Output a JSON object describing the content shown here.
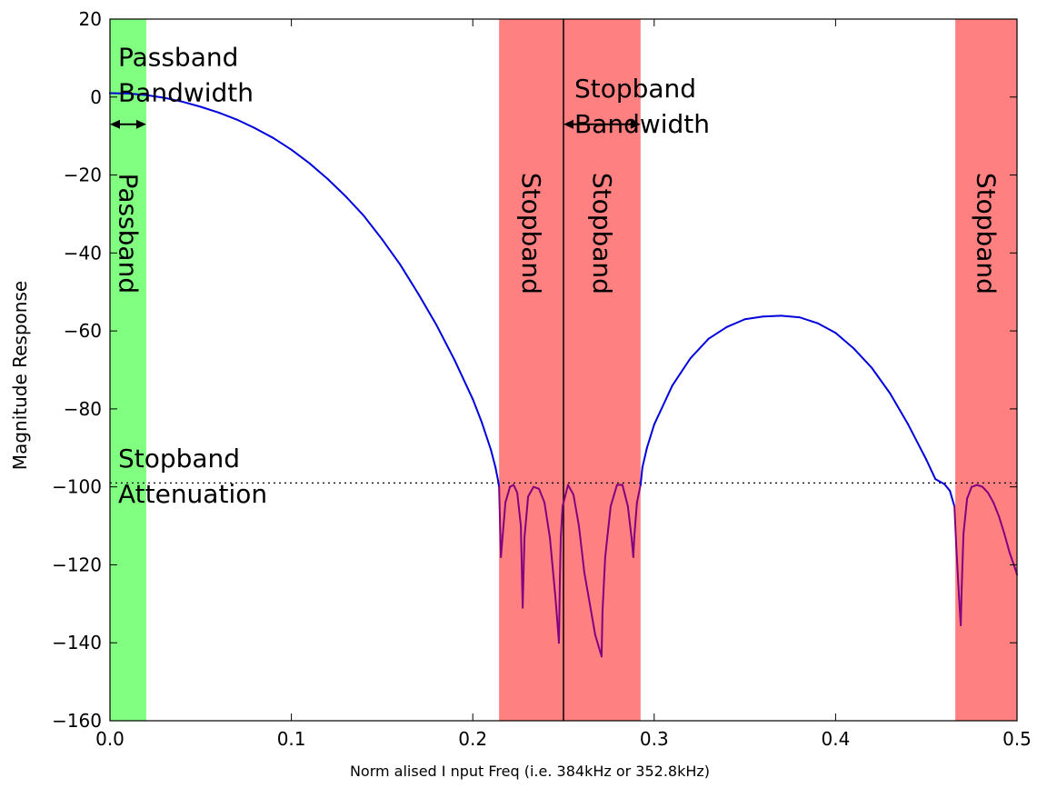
{
  "chart_data": {
    "type": "line",
    "xlabel": "Norm alised  I nput  Freq (i.e. 384kHz or 352.8kHz)",
    "ylabel": "Magnitude Response",
    "xlim": [
      0.0,
      0.5
    ],
    "ylim": [
      -160,
      20
    ],
    "x_ticks": [
      "0.0",
      "0.1",
      "0.2",
      "0.3",
      "0.4",
      "0.5"
    ],
    "y_ticks": [
      "20",
      "0",
      "−20",
      "−40",
      "−60",
      "−80",
      "−100",
      "−120",
      "−140",
      "−160"
    ],
    "grid": false,
    "colors": {
      "passband_region": "#80ff80",
      "stopband_region": "#ff8080",
      "curve": "#0000dd",
      "curve_in_stopband": "#800080"
    },
    "regions": [
      {
        "kind": "passband",
        "label": "Passband",
        "x_start": 0.0,
        "x_end": 0.02
      },
      {
        "kind": "stopband",
        "label": "Stopband",
        "x_start": 0.2145,
        "x_end": 0.25
      },
      {
        "kind": "stopband",
        "label": "Stopband",
        "x_start": 0.25,
        "x_end": 0.2925
      },
      {
        "kind": "stopband",
        "label": "Stopband",
        "x_start": 0.466,
        "x_end": 0.5
      }
    ],
    "reference_lines": [
      {
        "orientation": "vertical",
        "x": 0.25,
        "style": "solid"
      },
      {
        "orientation": "horizontal",
        "y": -99,
        "style": "dotted"
      }
    ],
    "annotations": [
      {
        "text_lines": [
          "Passband",
          "Bandwidth"
        ],
        "x": 0.0045,
        "y": 8,
        "arrow": {
          "x1": 0.0,
          "x2": 0.02,
          "y": -7
        }
      },
      {
        "text_lines": [
          "Stopband",
          "Bandwidth"
        ],
        "x": 0.256,
        "y": 0,
        "arrow": {
          "x1": 0.25,
          "x2": 0.2925,
          "y": -7
        }
      },
      {
        "text_lines": [
          "Stopband",
          "Attenuation"
        ],
        "x": 0.0045,
        "y": -95
      }
    ],
    "series": [
      {
        "x": [
          0.0,
          0.01,
          0.02,
          0.03,
          0.04,
          0.05,
          0.06,
          0.07,
          0.08,
          0.09,
          0.1,
          0.11,
          0.12,
          0.13,
          0.14,
          0.15,
          0.16,
          0.17,
          0.18,
          0.19,
          0.2,
          0.205,
          0.21,
          0.2125,
          0.214,
          0.2145,
          0.2155,
          0.218,
          0.2205,
          0.2225,
          0.2245,
          0.2265,
          0.2275,
          0.2285,
          0.2305,
          0.2335,
          0.2365,
          0.2395,
          0.2425,
          0.2455,
          0.2475,
          0.248,
          0.2485,
          0.2495,
          0.2525,
          0.2555,
          0.2585,
          0.2615,
          0.2645,
          0.2675,
          0.271,
          0.2715,
          0.273,
          0.276,
          0.2795,
          0.2825,
          0.2855,
          0.2875,
          0.2885,
          0.289,
          0.2905,
          0.2925,
          0.2935,
          0.296,
          0.3,
          0.31,
          0.32,
          0.33,
          0.34,
          0.35,
          0.36,
          0.37,
          0.38,
          0.39,
          0.4,
          0.41,
          0.42,
          0.43,
          0.44,
          0.45,
          0.455,
          0.46,
          0.463,
          0.4655,
          0.4665,
          0.468,
          0.469,
          0.4695,
          0.4705,
          0.4725,
          0.475,
          0.478,
          0.481,
          0.484,
          0.487,
          0.49,
          0.493,
          0.496,
          0.499,
          0.5
        ],
        "y": [
          1,
          0.9,
          0.5,
          -0.2,
          -1.2,
          -2.5,
          -4,
          -5.8,
          -8,
          -10.5,
          -13.5,
          -17,
          -21,
          -25.5,
          -30.5,
          -36.5,
          -43,
          -50.5,
          -58.5,
          -67.5,
          -77.5,
          -83.5,
          -90.5,
          -95,
          -98.5,
          -100,
          -118,
          -104,
          -100,
          -99.5,
          -101.5,
          -110,
          -131,
          -113,
          -102.5,
          -100,
          -100.5,
          -104,
          -113,
          -128,
          -140,
          -124,
          -113,
          -105,
          -99.5,
          -102,
          -110,
          -122,
          -130,
          -138,
          -143.5,
          -132,
          -118,
          -105,
          -99.5,
          -99.5,
          -105,
          -113,
          -118,
          -113,
          -104,
          -99.5,
          -95,
          -90,
          -84,
          -74,
          -67,
          -62,
          -59,
          -57,
          -56.3,
          -56.1,
          -56.5,
          -58,
          -60.5,
          -64.5,
          -69.5,
          -76,
          -84,
          -93,
          -98,
          -99.3,
          -101,
          -105,
          -115,
          -128,
          -135.5,
          -126,
          -112,
          -103,
          -100,
          -99.5,
          -100,
          -101.5,
          -104,
          -107.5,
          -112,
          -117,
          -121,
          -122.5
        ]
      }
    ]
  }
}
